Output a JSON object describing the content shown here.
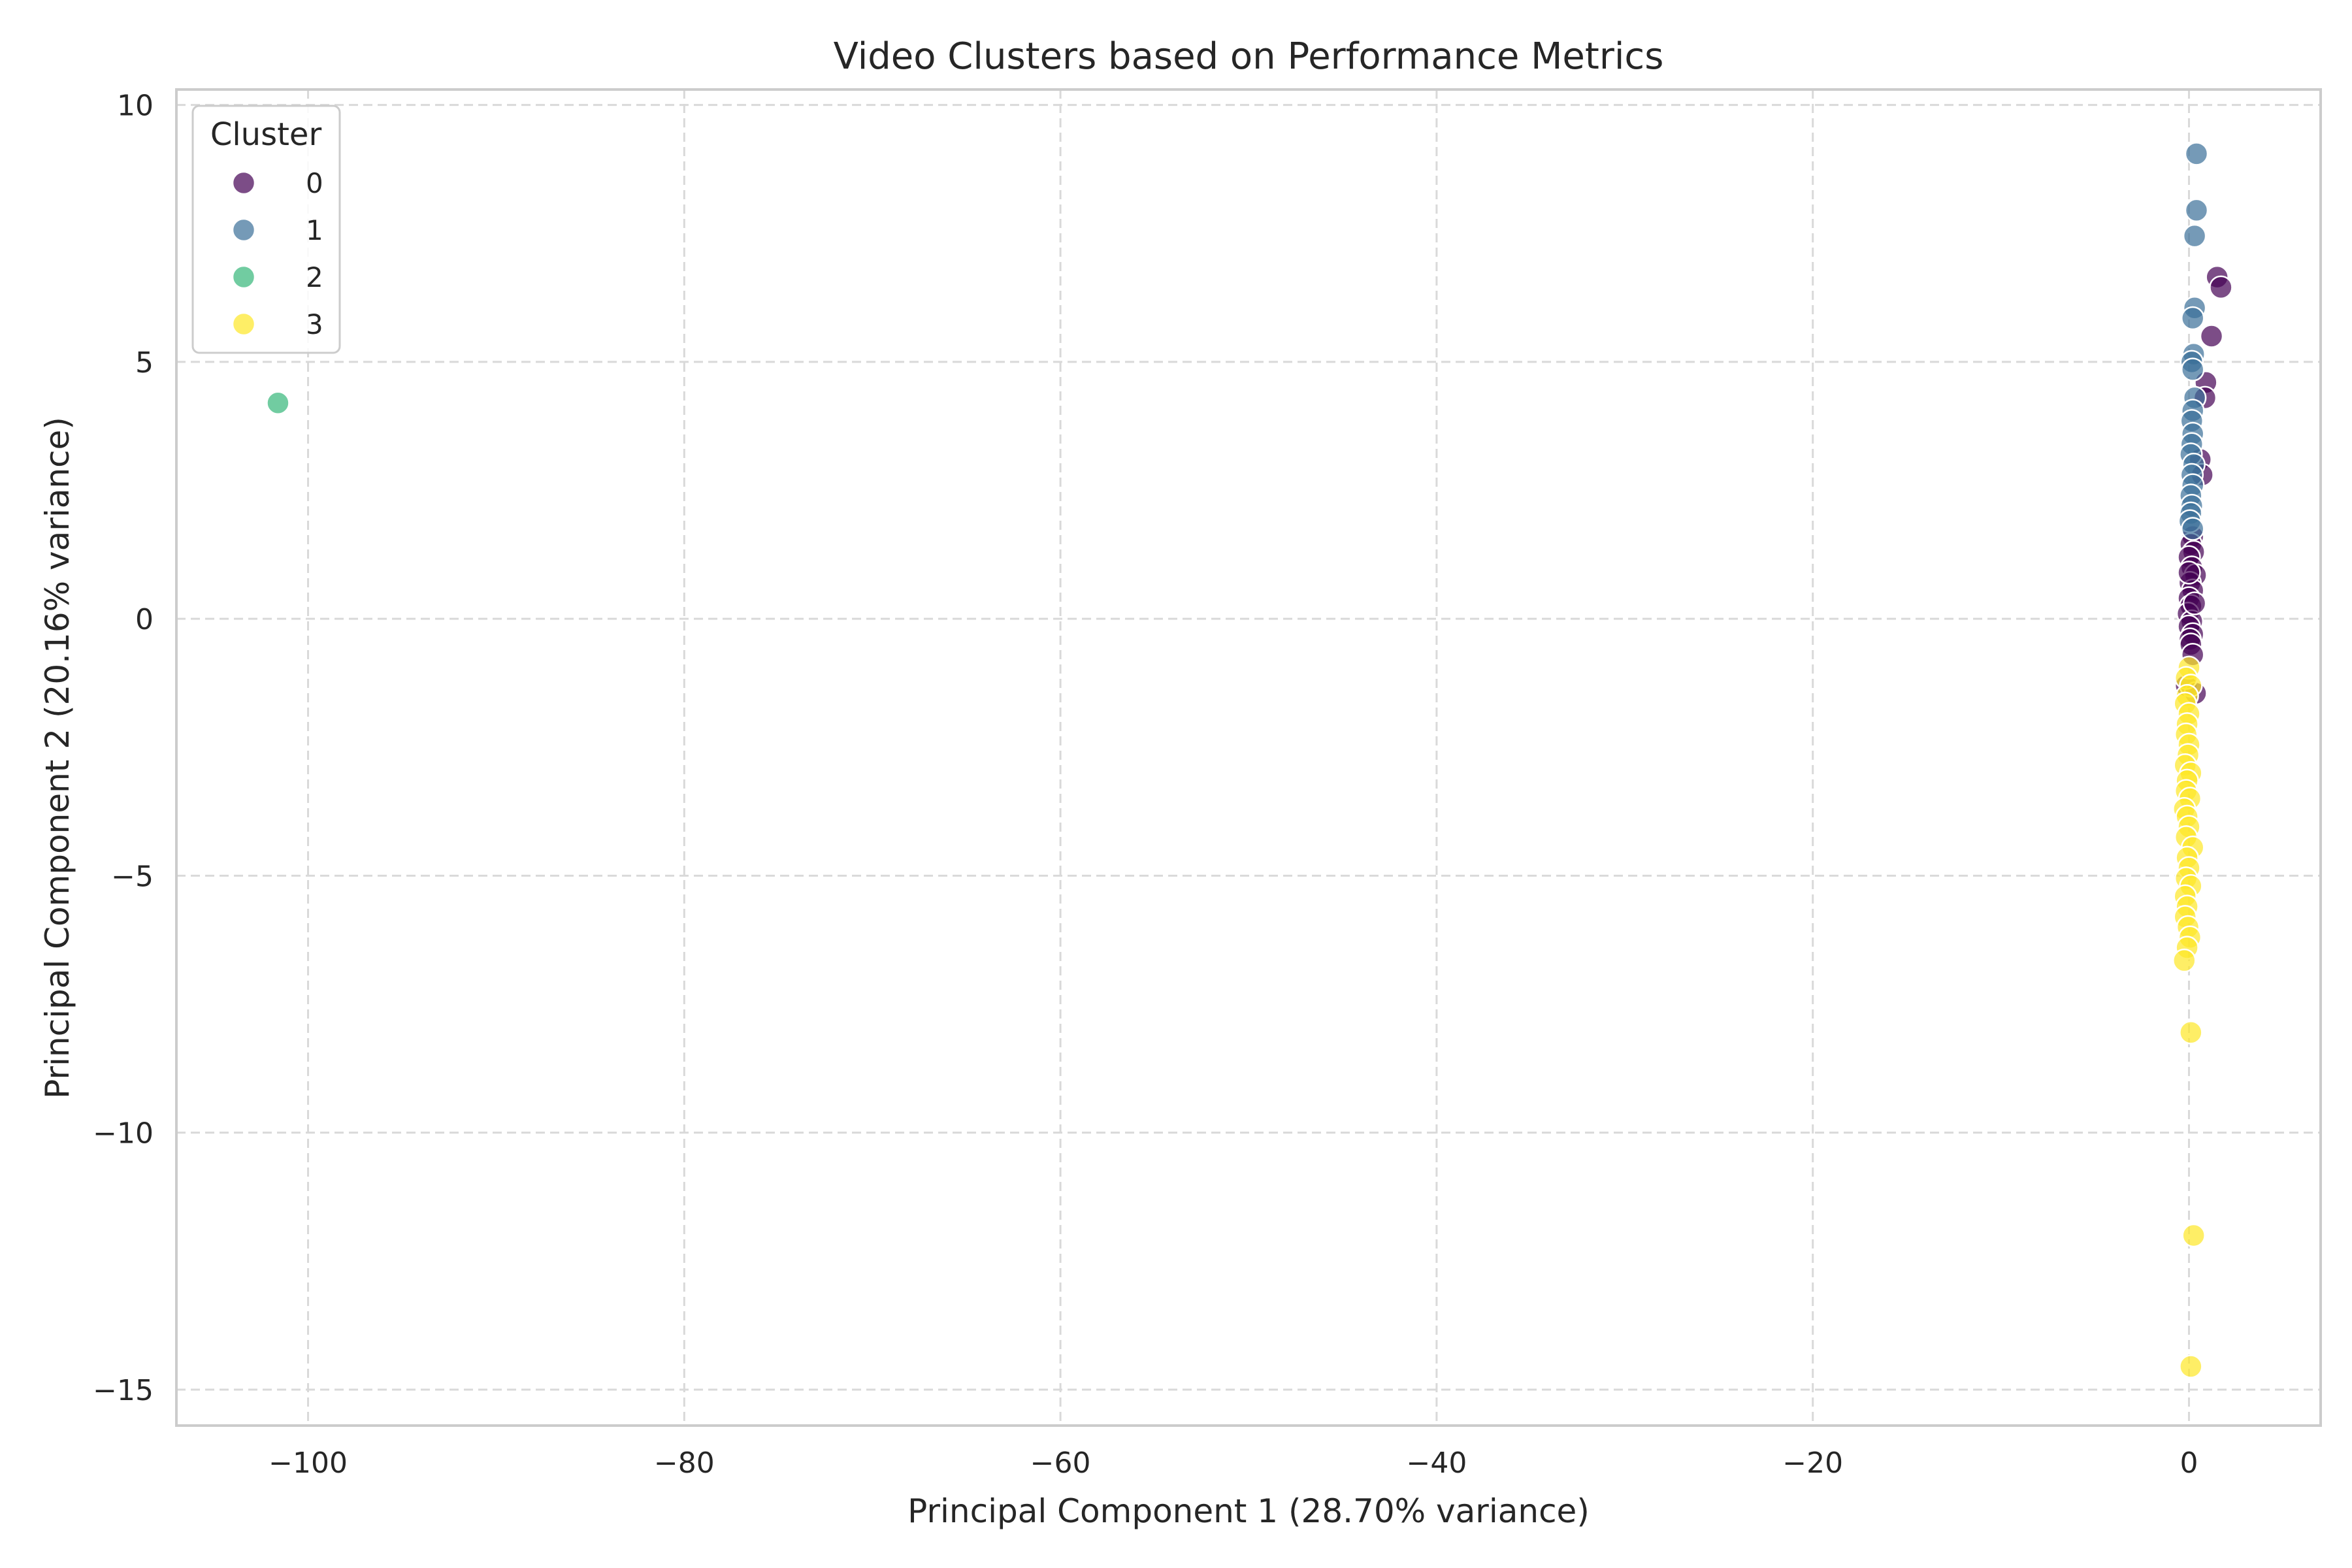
{
  "chart_data": {
    "type": "scatter",
    "title": "Video Clusters based on Performance Metrics",
    "xlabel": "Principal Component 1 (28.70% variance)",
    "ylabel": "Principal Component 2 (20.16% variance)",
    "xlim": [
      -107,
      7
    ],
    "ylim": [
      -15.7,
      10.3
    ],
    "xticks": [
      -100,
      -80,
      -60,
      -40,
      -20,
      0
    ],
    "yticks": [
      10,
      5,
      0,
      -5,
      -10,
      -15
    ],
    "xtick_labels": [
      "−100",
      "−80",
      "−60",
      "−40",
      "−20",
      "0"
    ],
    "ytick_labels": [
      "10",
      "5",
      "0",
      "−5",
      "−10",
      "−15"
    ],
    "grid": true,
    "legend": {
      "title": "Cluster",
      "placement": "top-left"
    },
    "series": [
      {
        "name": "0",
        "color": "#440154",
        "points": [
          [
            1.5,
            6.65
          ],
          [
            1.7,
            6.45
          ],
          [
            1.2,
            5.5
          ],
          [
            0.9,
            4.6
          ],
          [
            0.85,
            4.3
          ],
          [
            0.6,
            3.1
          ],
          [
            0.7,
            2.8
          ],
          [
            0.2,
            1.6
          ],
          [
            0.1,
            1.45
          ],
          [
            0.25,
            1.3
          ],
          [
            0.0,
            1.2
          ],
          [
            0.15,
            1.0
          ],
          [
            0.35,
            0.85
          ],
          [
            0.05,
            0.7
          ],
          [
            0.2,
            0.55
          ],
          [
            0.0,
            0.4
          ],
          [
            0.1,
            0.25
          ],
          [
            -0.05,
            0.1
          ],
          [
            0.15,
            -0.05
          ],
          [
            0.0,
            -0.15
          ],
          [
            0.2,
            -0.3
          ],
          [
            0.05,
            -0.4
          ],
          [
            0.1,
            -0.5
          ],
          [
            0.0,
            0.9
          ],
          [
            0.3,
            0.3
          ],
          [
            0.2,
            -0.7
          ],
          [
            -0.15,
            -1.3
          ],
          [
            0.35,
            -1.45
          ]
        ]
      },
      {
        "name": "1",
        "color": "#3b6f98",
        "points": [
          [
            0.4,
            9.05
          ],
          [
            0.4,
            7.95
          ],
          [
            0.3,
            7.45
          ],
          [
            0.3,
            6.05
          ],
          [
            0.2,
            5.85
          ],
          [
            0.25,
            5.15
          ],
          [
            0.15,
            5.0
          ],
          [
            0.2,
            4.85
          ],
          [
            0.3,
            4.3
          ],
          [
            0.2,
            4.05
          ],
          [
            0.15,
            3.85
          ],
          [
            0.2,
            3.6
          ],
          [
            0.15,
            3.4
          ],
          [
            0.1,
            3.2
          ],
          [
            0.25,
            3.0
          ],
          [
            0.15,
            2.8
          ],
          [
            0.2,
            2.6
          ],
          [
            0.1,
            2.4
          ],
          [
            0.15,
            2.2
          ],
          [
            0.1,
            2.05
          ],
          [
            0.05,
            1.9
          ],
          [
            0.2,
            1.75
          ]
        ]
      },
      {
        "name": "2",
        "color": "#35b779",
        "points": [
          [
            -101.6,
            4.2
          ]
        ]
      },
      {
        "name": "3",
        "color": "#fde725",
        "points": [
          [
            0.0,
            -0.95
          ],
          [
            -0.15,
            -1.15
          ],
          [
            0.1,
            -1.3
          ],
          [
            -0.1,
            -1.5
          ],
          [
            -0.2,
            -1.65
          ],
          [
            0.0,
            -1.85
          ],
          [
            -0.1,
            -2.05
          ],
          [
            -0.15,
            -2.25
          ],
          [
            0.0,
            -2.45
          ],
          [
            -0.05,
            -2.65
          ],
          [
            -0.2,
            -2.85
          ],
          [
            0.1,
            -3.0
          ],
          [
            -0.1,
            -3.15
          ],
          [
            -0.15,
            -3.35
          ],
          [
            0.05,
            -3.5
          ],
          [
            -0.25,
            -3.7
          ],
          [
            -0.1,
            -3.85
          ],
          [
            0.0,
            -4.05
          ],
          [
            -0.15,
            -4.25
          ],
          [
            0.2,
            -4.45
          ],
          [
            -0.1,
            -4.65
          ],
          [
            0.0,
            -4.85
          ],
          [
            -0.15,
            -5.05
          ],
          [
            0.1,
            -5.2
          ],
          [
            -0.2,
            -5.4
          ],
          [
            -0.1,
            -5.6
          ],
          [
            -0.2,
            -5.8
          ],
          [
            -0.05,
            -6.0
          ],
          [
            0.05,
            -6.2
          ],
          [
            -0.1,
            -6.4
          ],
          [
            -0.25,
            -6.65
          ],
          [
            0.1,
            -8.05
          ],
          [
            0.25,
            -12.0
          ],
          [
            0.1,
            -14.55
          ]
        ]
      }
    ]
  }
}
